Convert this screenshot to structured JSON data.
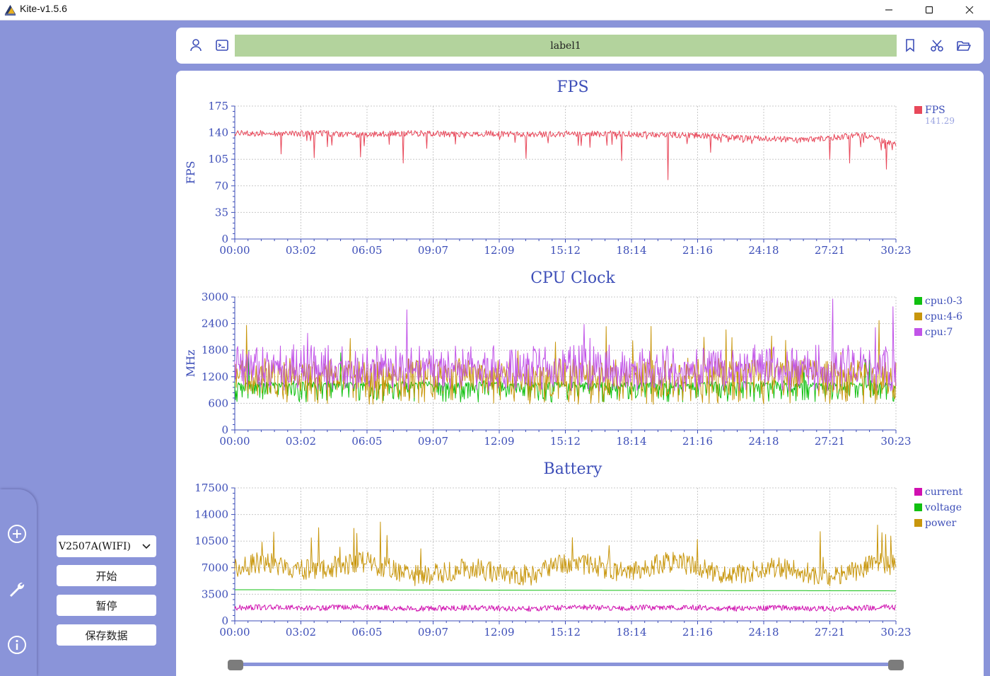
{
  "window": {
    "title": "Kite-v1.5.6",
    "controls": [
      "minimize-icon",
      "maximize-icon",
      "close-icon"
    ]
  },
  "sidebar": {
    "icons": [
      "plus-circle-icon",
      "wrench-icon",
      "info-icon"
    ]
  },
  "controls": {
    "device": "V2507A(WIFI)",
    "start_label": "开始",
    "pause_label": "暂停",
    "save_label": "保存数据"
  },
  "toolbar": {
    "label": "label1",
    "left_icons": [
      "user-icon",
      "terminal-icon"
    ],
    "right_icons": [
      "bookmark-icon",
      "scissors-icon",
      "folder-open-icon"
    ]
  },
  "colors": {
    "background": "#8a94d9",
    "label_bar": "#b3d39d",
    "axis": "#3d4eb8",
    "fps": "#e8485a",
    "cpu0_3": "#10c010",
    "cpu4_6": "#c8960c",
    "cpu7": "#c154e8",
    "current": "#d010b0",
    "voltage": "#10c010",
    "power": "#c8960c"
  },
  "chart_data": [
    {
      "type": "line",
      "title": "FPS",
      "ylabel": "FPS",
      "ylim": [
        0,
        175
      ],
      "yticks": [
        "0",
        "35",
        "70",
        "105",
        "140",
        "175"
      ],
      "xticks": [
        "00:00",
        "03:02",
        "06:05",
        "09:07",
        "12:09",
        "15:12",
        "18:14",
        "21:16",
        "24:18",
        "27:21",
        "30:23"
      ],
      "legend_position": "top-right",
      "series": [
        {
          "name": "FPS",
          "legend_value": "141.29",
          "color": "#e8485a",
          "base": [
            143,
            143,
            143,
            143,
            141,
            143,
            143,
            142,
            143,
            142,
            142,
            143,
            143,
            142,
            141,
            140,
            137,
            136,
            134,
            138,
            141,
            128
          ],
          "noise": 4,
          "dips": [
            [
              0.07,
              112
            ],
            [
              0.12,
              107
            ],
            [
              0.19,
              108
            ],
            [
              0.255,
              100
            ],
            [
              0.44,
              106
            ],
            [
              0.585,
              103
            ],
            [
              0.655,
              78
            ],
            [
              0.72,
              114
            ],
            [
              0.9,
              105
            ],
            [
              0.93,
              100
            ],
            [
              0.985,
              92
            ]
          ]
        }
      ]
    },
    {
      "type": "line",
      "title": "CPU Clock",
      "ylabel": "MHz",
      "ylim": [
        0,
        3000
      ],
      "yticks": [
        "0",
        "600",
        "1200",
        "1800",
        "2400",
        "3000"
      ],
      "xticks": [
        "00:00",
        "03:02",
        "06:05",
        "09:07",
        "12:09",
        "15:12",
        "18:14",
        "21:16",
        "24:18",
        "27:21",
        "30:23"
      ],
      "legend_position": "top-right",
      "series": [
        {
          "name": "cpu:0-3",
          "color": "#10c010",
          "levels": [
            1000,
            1050,
            850,
            950,
            700,
            1000
          ],
          "noise": 150
        },
        {
          "name": "cpu:4-6",
          "color": "#c8960c",
          "levels": [
            1500,
            1200,
            900,
            1450,
            1100,
            1300,
            700
          ],
          "noise": 250
        },
        {
          "name": "cpu:7",
          "color": "#c154e8",
          "levels": [
            1500,
            1300,
            1000,
            1500,
            1200,
            1800
          ],
          "noise": 250
        }
      ]
    },
    {
      "type": "line",
      "title": "Battery",
      "ylim": [
        0,
        17500
      ],
      "yticks": [
        "0",
        "3500",
        "7000",
        "10500",
        "14000",
        "17500"
      ],
      "xticks": [
        "00:00",
        "03:02",
        "06:05",
        "09:07",
        "12:09",
        "15:12",
        "18:14",
        "21:16",
        "24:18",
        "27:21",
        "30:23"
      ],
      "legend_position": "top-right",
      "series": [
        {
          "name": "current",
          "color": "#d010b0",
          "base": 1700,
          "noise": 450
        },
        {
          "name": "voltage",
          "color": "#10c010",
          "base": 4100,
          "slope": -150
        },
        {
          "name": "power",
          "color": "#c8960c",
          "base": 6800,
          "noise": 1800
        }
      ]
    }
  ],
  "timeline": {
    "start_fraction": 0,
    "end_fraction": 1
  }
}
